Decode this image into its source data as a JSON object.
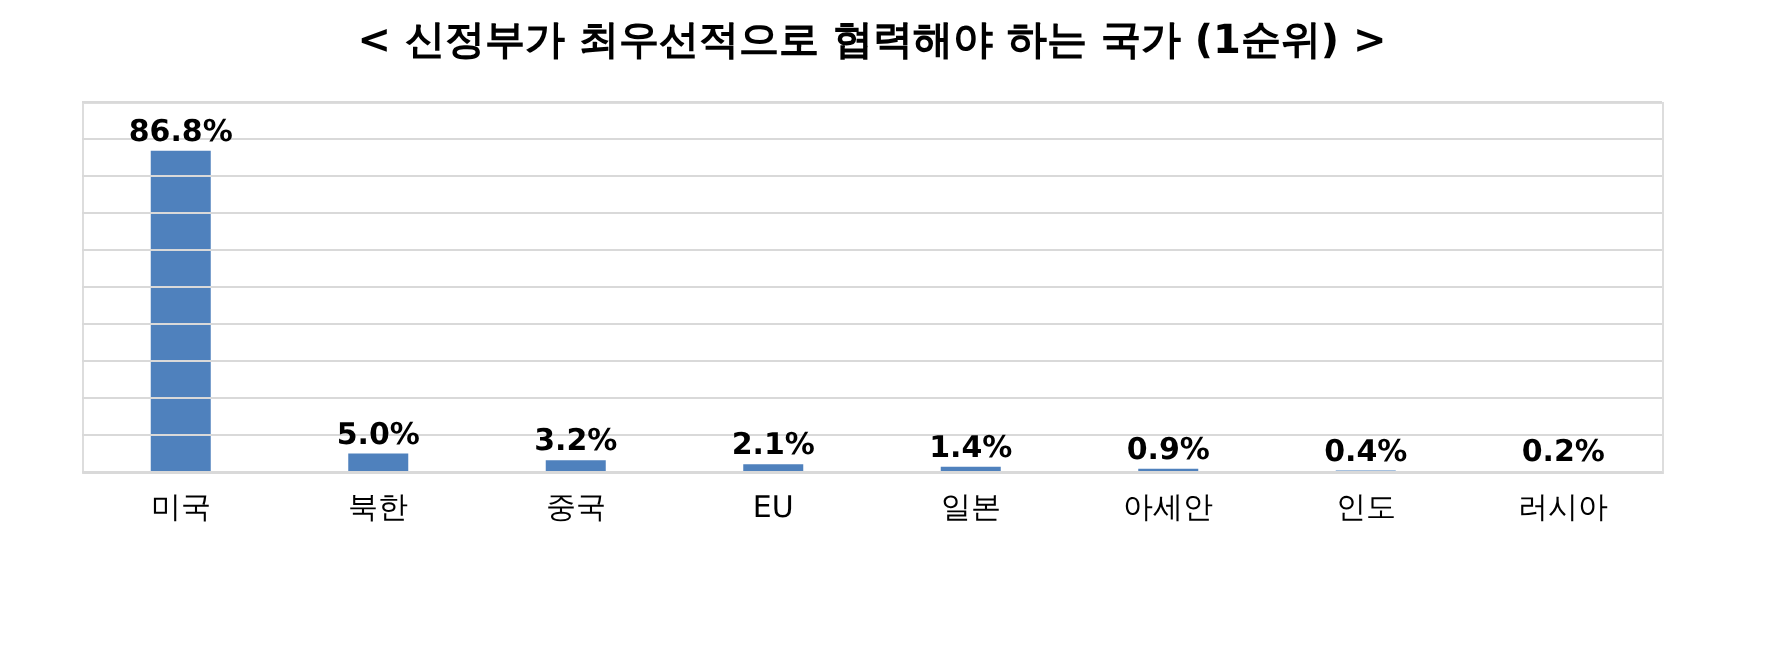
{
  "chart_data": {
    "type": "bar",
    "title": "< 신정부가 최우선적으로 협력해야 하는 국가 (1순위) >",
    "categories": [
      "미국",
      "북한",
      "중국",
      "EU",
      "일본",
      "아세안",
      "인도",
      "러시아"
    ],
    "values": [
      86.8,
      5.0,
      3.2,
      2.1,
      1.4,
      0.9,
      0.4,
      0.2
    ],
    "value_labels": [
      "86.8%",
      "5.0%",
      "3.2%",
      "2.1%",
      "1.4%",
      "0.9%",
      "0.4%",
      "0.2%"
    ],
    "color": "#4f81bd",
    "ylim": [
      0,
      100
    ],
    "yticks": [
      {
        "value": 0,
        "label": null
      },
      {
        "value": 10,
        "label": null
      },
      {
        "value": 20,
        "label": null
      },
      {
        "value": 30,
        "label": null
      },
      {
        "value": 40,
        "label": null
      },
      {
        "value": 50,
        "label": null
      },
      {
        "value": 60,
        "label": null
      },
      {
        "value": 70,
        "label": null
      },
      {
        "value": 80,
        "label": null
      },
      {
        "value": 90,
        "label": null
      },
      {
        "value": 100,
        "label": null
      }
    ],
    "tick_labels": "x",
    "grid": "y"
  }
}
